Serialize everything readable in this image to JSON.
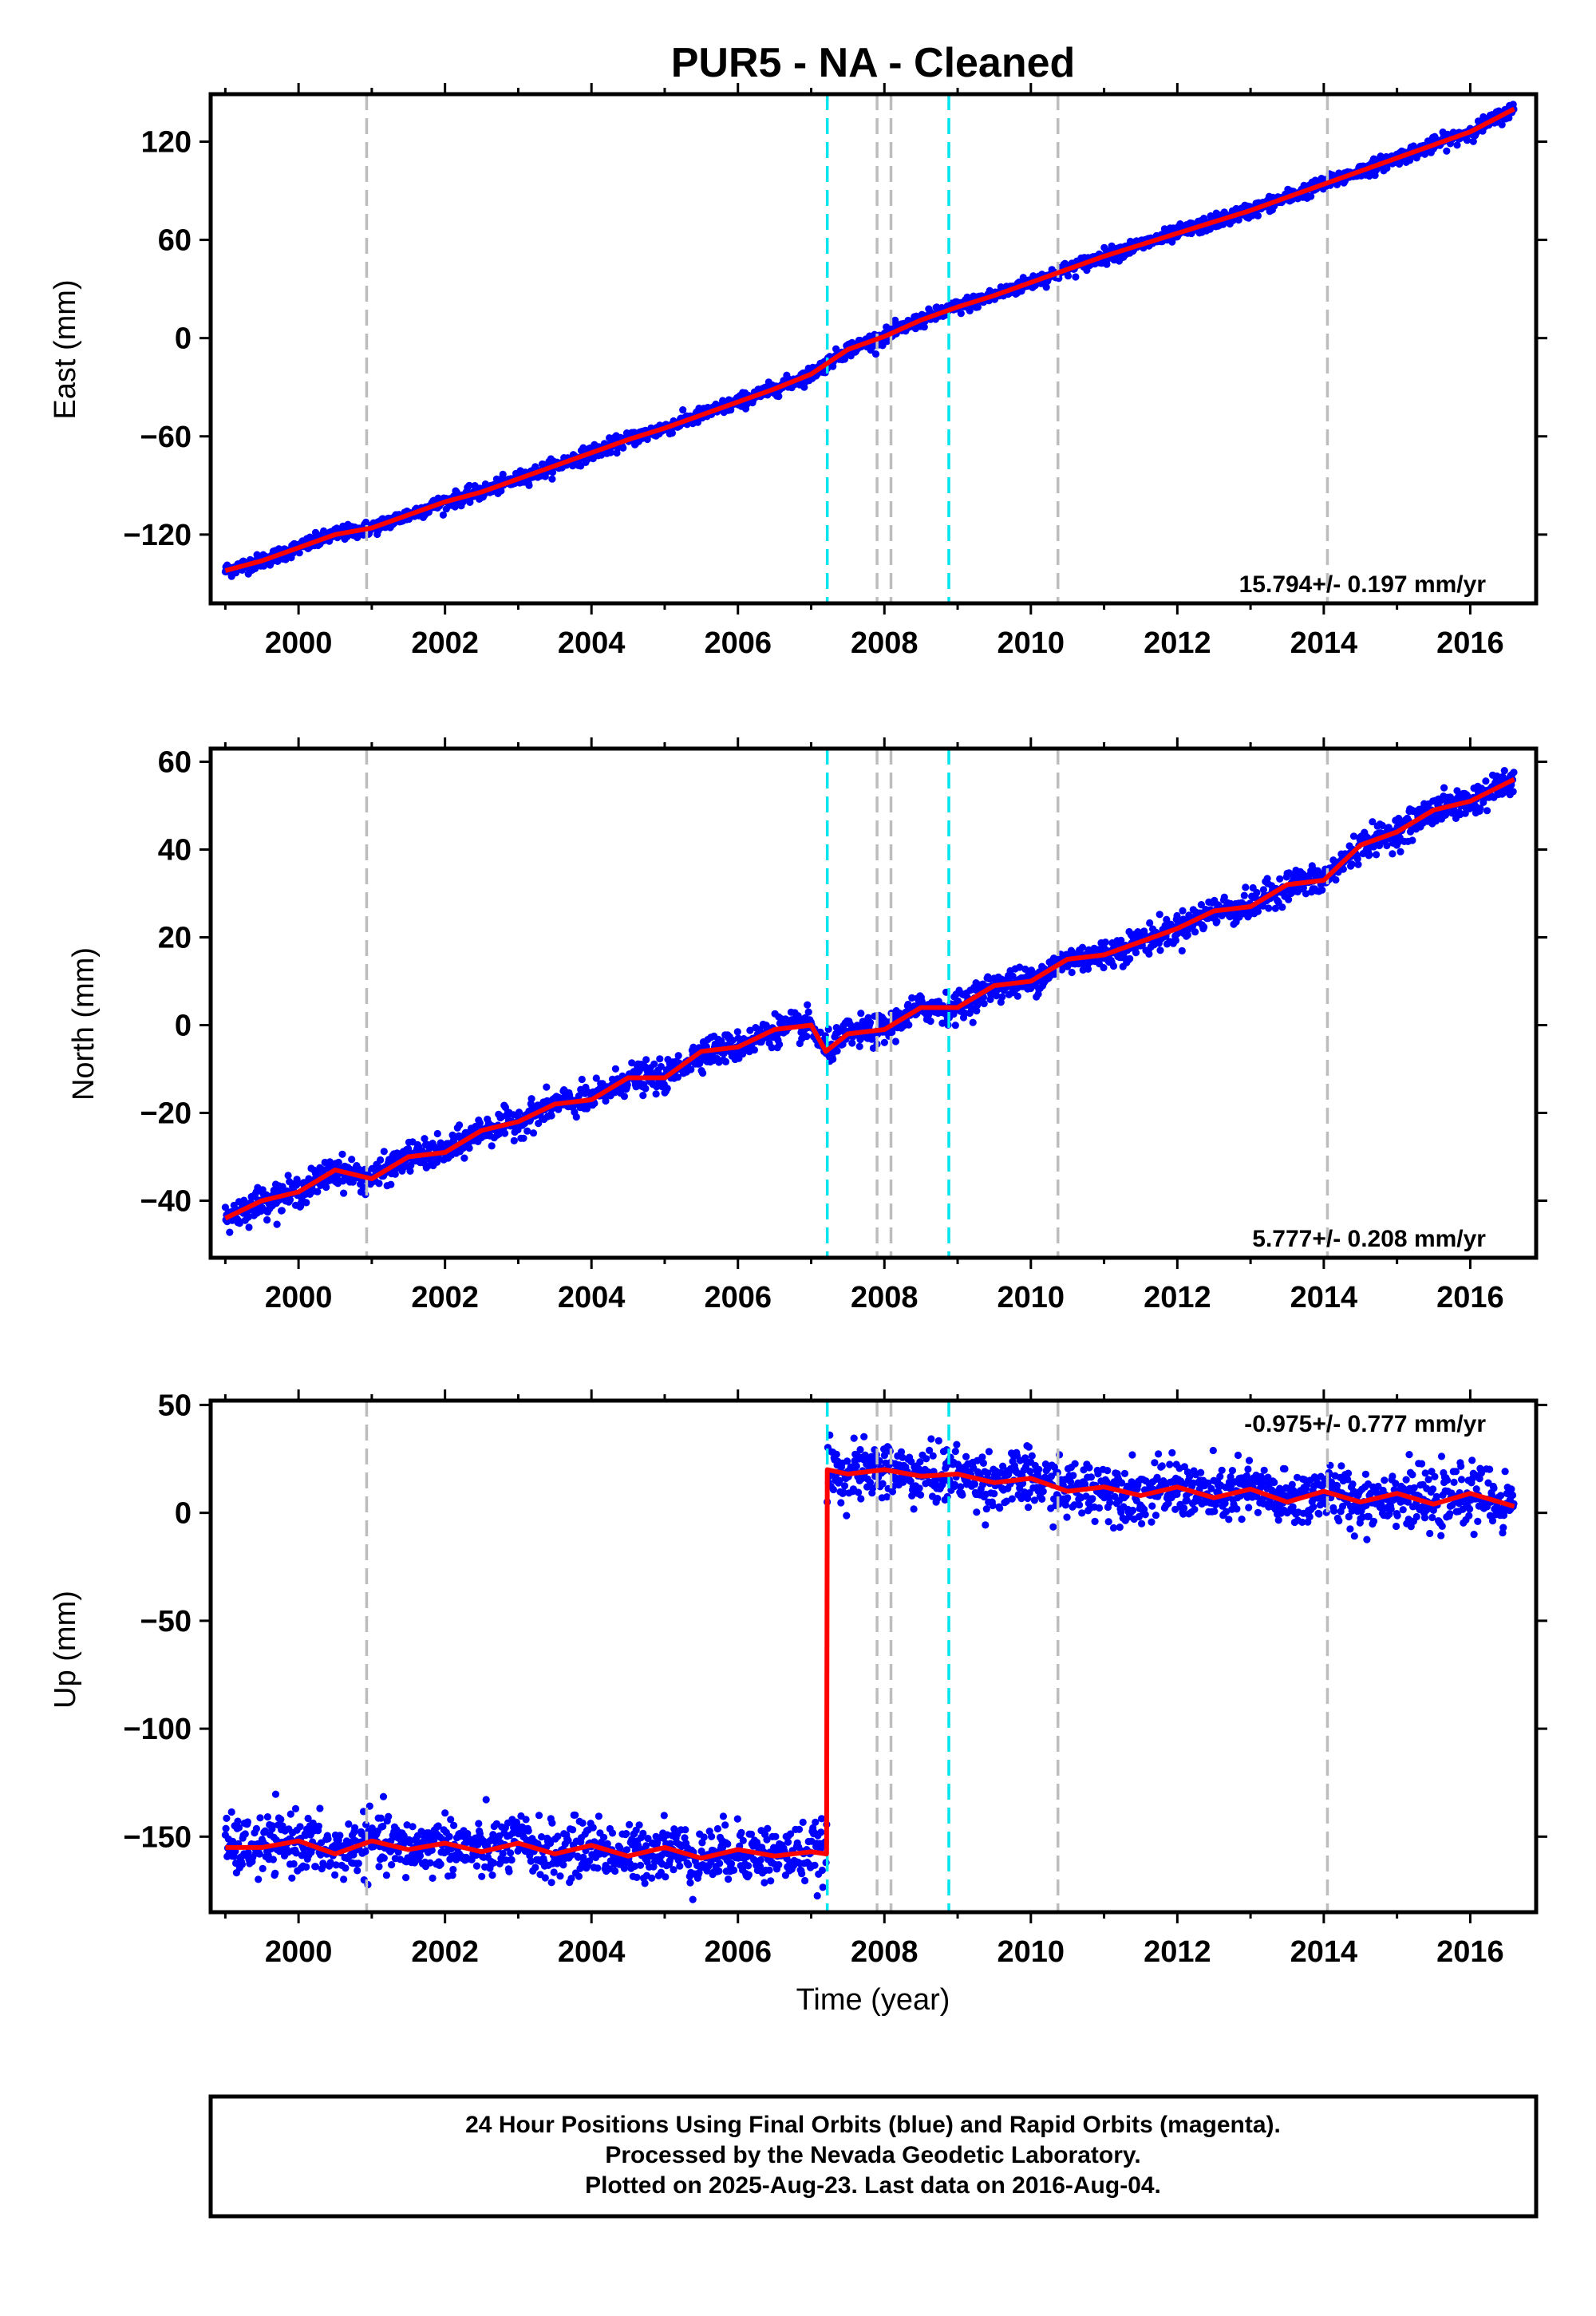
{
  "figure": {
    "title": "PUR5  - NA - Cleaned",
    "xlabel": "Time (year)",
    "footer": [
      "24 Hour Positions Using Final Orbits (blue) and Rapid Orbits (magenta).",
      "Processed by the Nevada Geodetic Laboratory.",
      "Plotted on 2025-Aug-23. Last data on 2016-Aug-04."
    ],
    "colors": {
      "data": "#0000ff",
      "model": "#ff0000",
      "equipment_change": "#00e5ee",
      "earthquake": "#bdbdbd",
      "axes": "#000000"
    }
  },
  "chart_data": [
    {
      "type": "scatter",
      "name": "east",
      "ylabel": "East (mm)",
      "xlim": [
        1998.8,
        2016.9
      ],
      "ylim": [
        -162,
        149
      ],
      "yticks": [
        -120,
        -60,
        0,
        60,
        120
      ],
      "ytick_labels": [
        "−120",
        "−60",
        "0",
        "60",
        "120"
      ],
      "xticks": [
        2000,
        2002,
        2004,
        2006,
        2008,
        2010,
        2012,
        2014,
        2016
      ],
      "xtick_labels": [
        "2000",
        "2002",
        "2004",
        "2006",
        "2008",
        "2010",
        "2012",
        "2014",
        "2016"
      ],
      "rate_label": "15.794+/- 0.197 mm/yr",
      "rate_label_position": "bottom-right",
      "grid": false,
      "series": [
        {
          "name": "",
          "style": "points",
          "color": "#0000ff",
          "x": [
            1999.0,
            1999.5,
            2000.0,
            2000.5,
            2001.0,
            2001.5,
            2002.0,
            2002.5,
            2003.0,
            2003.5,
            2004.0,
            2004.5,
            2005.0,
            2005.5,
            2006.0,
            2006.5,
            2007.0,
            2007.5,
            2008.0,
            2008.5,
            2009.0,
            2009.5,
            2010.0,
            2010.5,
            2011.0,
            2011.5,
            2012.0,
            2012.5,
            2013.0,
            2013.5,
            2014.0,
            2014.5,
            2015.0,
            2015.5,
            2016.0,
            2016.6
          ],
          "y": [
            -142,
            -136,
            -128,
            -120,
            -116,
            -108,
            -100,
            -94,
            -86,
            -78,
            -70,
            -62,
            -55,
            -47,
            -39,
            -31,
            -22,
            -7,
            1,
            11,
            19,
            26,
            34,
            42,
            50,
            57,
            64,
            71,
            78,
            86,
            94,
            102,
            110,
            118,
            126,
            140
          ],
          "scatter_mm": 4
        },
        {
          "name": "",
          "style": "line",
          "color": "#ff0000",
          "x": [
            1999.0,
            1999.5,
            2000.0,
            2000.5,
            2001.0,
            2001.5,
            2002.0,
            2002.5,
            2003.0,
            2003.5,
            2004.0,
            2004.5,
            2005.0,
            2005.5,
            2006.0,
            2006.5,
            2007.0,
            2007.5,
            2008.0,
            2008.5,
            2009.0,
            2009.5,
            2010.0,
            2010.5,
            2011.0,
            2011.5,
            2012.0,
            2012.5,
            2013.0,
            2013.5,
            2014.0,
            2014.5,
            2015.0,
            2015.5,
            2016.0,
            2016.6
          ],
          "y": [
            -142,
            -136,
            -128,
            -120,
            -116,
            -108,
            -100,
            -94,
            -86,
            -78,
            -70,
            -62,
            -55,
            -47,
            -39,
            -31,
            -22,
            -7,
            1,
            11,
            19,
            26,
            34,
            42,
            50,
            57,
            64,
            71,
            78,
            86,
            94,
            102,
            110,
            118,
            126,
            140
          ]
        }
      ],
      "vlines_cyan": [
        2007.22,
        2008.88
      ],
      "vlines_gray": [
        2000.93,
        2007.9,
        2008.09,
        2010.37,
        2014.05
      ]
    },
    {
      "type": "scatter",
      "name": "north",
      "ylabel": "North (mm)",
      "xlim": [
        1998.8,
        2016.9
      ],
      "ylim": [
        -53,
        63
      ],
      "yticks": [
        -40,
        -20,
        0,
        20,
        40,
        60
      ],
      "ytick_labels": [
        "−40",
        "−20",
        "0",
        "20",
        "40",
        "60"
      ],
      "xticks": [
        2000,
        2002,
        2004,
        2006,
        2008,
        2010,
        2012,
        2014,
        2016
      ],
      "xtick_labels": [
        "2000",
        "2002",
        "2004",
        "2006",
        "2008",
        "2010",
        "2012",
        "2014",
        "2016"
      ],
      "rate_label": "5.777+/- 0.208 mm/yr",
      "rate_label_position": "bottom-right",
      "grid": false,
      "series": [
        {
          "name": "",
          "style": "points",
          "color": "#0000ff",
          "x": [
            1999.0,
            1999.5,
            2000.0,
            2000.5,
            2001.0,
            2001.5,
            2002.0,
            2002.5,
            2003.0,
            2003.5,
            2004.0,
            2004.5,
            2005.0,
            2005.5,
            2006.0,
            2006.5,
            2007.0,
            2007.2,
            2007.5,
            2008.0,
            2008.5,
            2009.0,
            2009.5,
            2010.0,
            2010.5,
            2011.0,
            2011.5,
            2012.0,
            2012.5,
            2013.0,
            2013.5,
            2014.0,
            2014.5,
            2015.0,
            2015.5,
            2016.0,
            2016.6
          ],
          "y": [
            -44,
            -40,
            -38,
            -33,
            -35,
            -30,
            -29,
            -24,
            -22,
            -18,
            -17,
            -12,
            -12,
            -6,
            -5,
            -1,
            0,
            -6,
            -2,
            -1,
            4,
            4,
            9,
            10,
            15,
            16,
            19,
            22,
            26,
            27,
            32,
            33,
            41,
            44,
            49,
            51,
            56
          ],
          "scatter_mm": 3
        },
        {
          "name": "",
          "style": "line",
          "color": "#ff0000",
          "x": [
            1999.0,
            1999.5,
            2000.0,
            2000.5,
            2001.0,
            2001.5,
            2002.0,
            2002.5,
            2003.0,
            2003.5,
            2004.0,
            2004.5,
            2005.0,
            2005.5,
            2006.0,
            2006.5,
            2007.0,
            2007.2,
            2007.5,
            2008.0,
            2008.5,
            2009.0,
            2009.5,
            2010.0,
            2010.5,
            2011.0,
            2011.5,
            2012.0,
            2012.5,
            2013.0,
            2013.5,
            2014.0,
            2014.5,
            2015.0,
            2015.5,
            2016.0,
            2016.6
          ],
          "y": [
            -44,
            -40,
            -38,
            -33,
            -35,
            -30,
            -29,
            -24,
            -22,
            -18,
            -17,
            -12,
            -12,
            -6,
            -5,
            -1,
            0,
            -6,
            -2,
            -1,
            4,
            4,
            9,
            10,
            15,
            16,
            19,
            22,
            26,
            27,
            32,
            33,
            41,
            44,
            49,
            51,
            56
          ]
        }
      ],
      "vlines_cyan": [
        2007.22,
        2008.88
      ],
      "vlines_gray": [
        2000.93,
        2007.9,
        2008.09,
        2010.37,
        2014.05
      ]
    },
    {
      "type": "scatter",
      "name": "up",
      "ylabel": "Up (mm)",
      "xlim": [
        1998.8,
        2016.9
      ],
      "ylim": [
        -185,
        52
      ],
      "yticks": [
        -150,
        -100,
        -50,
        0,
        50
      ],
      "ytick_labels": [
        "−150",
        "−100",
        "−50",
        "0",
        "50"
      ],
      "xticks": [
        2000,
        2002,
        2004,
        2006,
        2008,
        2010,
        2012,
        2014,
        2016
      ],
      "xtick_labels": [
        "2000",
        "2002",
        "2004",
        "2006",
        "2008",
        "2010",
        "2012",
        "2014",
        "2016"
      ],
      "rate_label": "-0.975+/- 0.777 mm/yr",
      "rate_label_position": "top-right",
      "grid": false,
      "series": [
        {
          "name": "",
          "style": "points",
          "color": "#0000ff",
          "x": [
            1999.0,
            1999.5,
            2000.0,
            2000.5,
            2001.0,
            2001.5,
            2002.0,
            2002.5,
            2003.0,
            2003.5,
            2004.0,
            2004.5,
            2005.0,
            2005.5,
            2006.0,
            2006.5,
            2007.0,
            2007.21,
            2007.22,
            2007.5,
            2008.0,
            2008.5,
            2009.0,
            2009.5,
            2010.0,
            2010.5,
            2011.0,
            2011.5,
            2012.0,
            2012.5,
            2013.0,
            2013.5,
            2014.0,
            2014.5,
            2015.0,
            2015.5,
            2016.0,
            2016.6
          ],
          "y": [
            -155,
            -155,
            -152,
            -158,
            -152,
            -156,
            -153,
            -157,
            -153,
            -158,
            -154,
            -159,
            -155,
            -160,
            -156,
            -159,
            -157,
            -158,
            20,
            18,
            20,
            17,
            18,
            14,
            16,
            10,
            12,
            8,
            12,
            7,
            11,
            5,
            10,
            5,
            9,
            4,
            9,
            3
          ],
          "scatter_mm": 12
        },
        {
          "name": "",
          "style": "line",
          "color": "#ff0000",
          "x": [
            1999.0,
            1999.5,
            2000.0,
            2000.5,
            2001.0,
            2001.5,
            2002.0,
            2002.5,
            2003.0,
            2003.5,
            2004.0,
            2004.5,
            2005.0,
            2005.5,
            2006.0,
            2006.5,
            2007.0,
            2007.21,
            2007.22,
            2007.5,
            2008.0,
            2008.5,
            2009.0,
            2009.5,
            2010.0,
            2010.5,
            2011.0,
            2011.5,
            2012.0,
            2012.5,
            2013.0,
            2013.5,
            2014.0,
            2014.5,
            2015.0,
            2015.5,
            2016.0,
            2016.6
          ],
          "y": [
            -155,
            -155,
            -152,
            -158,
            -152,
            -156,
            -153,
            -157,
            -153,
            -158,
            -154,
            -159,
            -155,
            -160,
            -156,
            -159,
            -157,
            -158,
            20,
            18,
            20,
            17,
            18,
            14,
            16,
            10,
            12,
            8,
            12,
            7,
            11,
            5,
            10,
            5,
            9,
            4,
            9,
            3
          ]
        }
      ],
      "vlines_cyan": [
        2007.22,
        2008.88
      ],
      "vlines_gray": [
        2000.93,
        2007.9,
        2008.09,
        2010.37,
        2014.05
      ]
    }
  ]
}
